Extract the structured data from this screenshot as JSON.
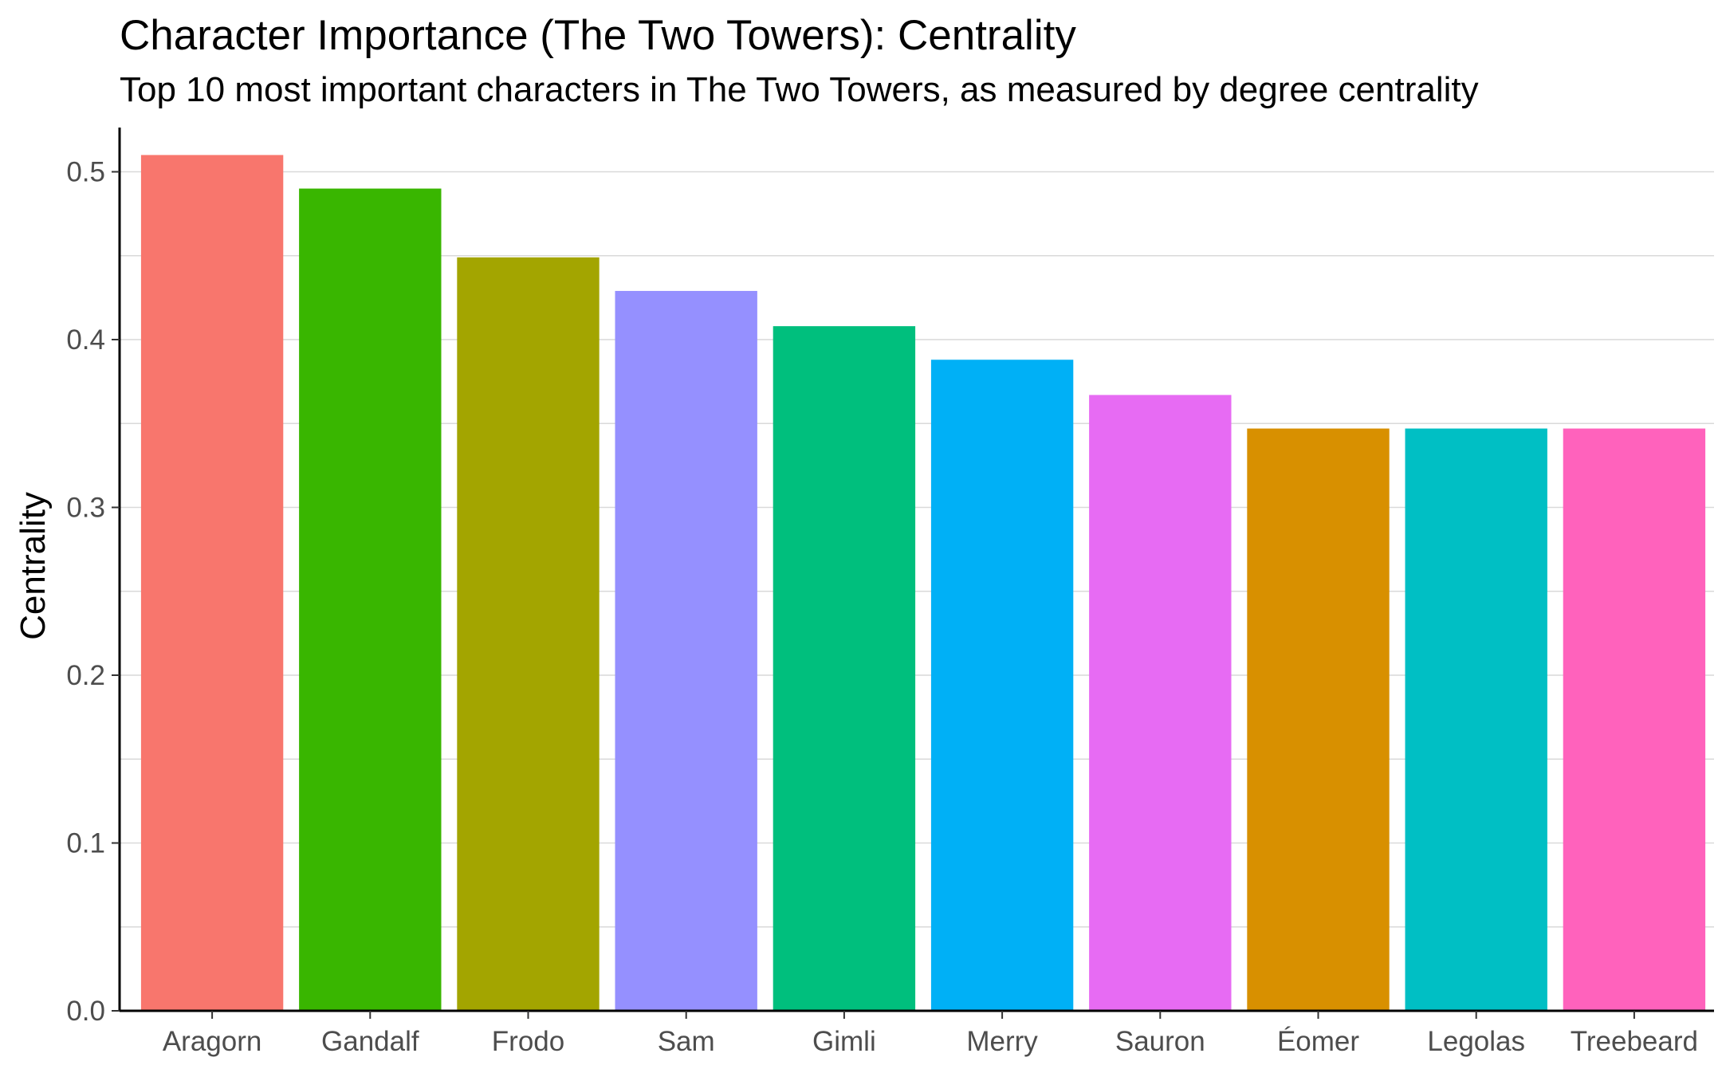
{
  "chart_data": {
    "type": "bar",
    "title": "Character Importance (The Two Towers): Centrality",
    "subtitle": "Top 10 most important characters in The Two Towers, as measured by degree centrality",
    "xlabel": "",
    "ylabel": "Centrality",
    "ylim": [
      0,
      0.5
    ],
    "yticks": [
      0.0,
      0.1,
      0.2,
      0.3,
      0.4,
      0.5
    ],
    "ytick_labels": [
      "0.0",
      "0.1",
      "0.2",
      "0.3",
      "0.4",
      "0.5"
    ],
    "grid": "horizontal",
    "legend": "none",
    "categories": [
      "Aragorn",
      "Gandalf",
      "Frodo",
      "Sam",
      "Gimli",
      "Merry",
      "Sauron",
      "Éomer",
      "Legolas",
      "Treebeard"
    ],
    "values": [
      0.51,
      0.49,
      0.449,
      0.429,
      0.408,
      0.388,
      0.367,
      0.347,
      0.347,
      0.347
    ],
    "colors": [
      "#F8766D",
      "#39B600",
      "#A3A500",
      "#9590FF",
      "#00BF7D",
      "#00B0F6",
      "#E76BF3",
      "#D89000",
      "#00BFC4",
      "#FF62BC"
    ]
  }
}
